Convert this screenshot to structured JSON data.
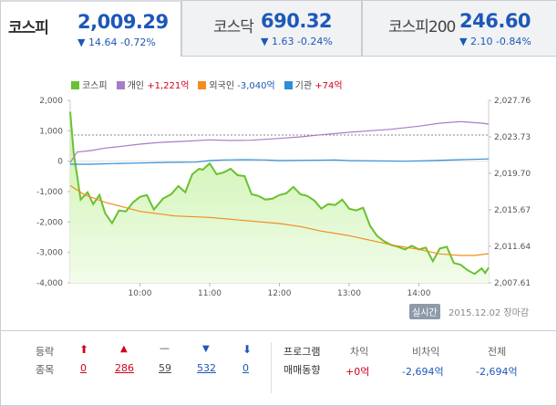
{
  "tabs": [
    {
      "name": "코스피",
      "value": "2,009.29",
      "change": "▼ 14.64 -0.72%",
      "active": true
    },
    {
      "name": "코스닥",
      "value": "690.32",
      "change": "▼ 1.63 -0.24%",
      "active": false
    },
    {
      "name": "코스피200",
      "value": "246.60",
      "change": "▼ 2.10 -0.84%",
      "active": false
    }
  ],
  "legend": [
    {
      "label": "코스피",
      "color": "#6ac12f",
      "delta": ""
    },
    {
      "label": "개인",
      "color": "#a77cc5",
      "delta": "+1,221억"
    },
    {
      "label": "외국인",
      "color": "#f28d1f",
      "delta": "-3,040억"
    },
    {
      "label": "기관",
      "color": "#2f8ed8",
      "delta": "+74억"
    }
  ],
  "footer": {
    "realtime_label": "실시간",
    "datetime": "2015.12.02 장마감"
  },
  "breadth": {
    "label_line1": "등락",
    "label_line2": "종목",
    "items": [
      {
        "icon": "upper-limit-icon",
        "glyph": "⬆",
        "color": "#d0021b",
        "value": "0"
      },
      {
        "icon": "up-icon",
        "glyph": "▲",
        "color": "#d0021b",
        "value": "286"
      },
      {
        "icon": "flat-icon",
        "glyph": "—",
        "color": "#444444",
        "value": "59"
      },
      {
        "icon": "down-icon",
        "glyph": "▼",
        "color": "#1d58b8",
        "value": "532"
      },
      {
        "icon": "lower-limit-icon",
        "glyph": "⬇",
        "color": "#1d58b8",
        "value": "0"
      }
    ]
  },
  "program": {
    "label_line1": "프로그램",
    "label_line2": "매매동향",
    "columns": [
      {
        "label": "차익",
        "value": "+0억"
      },
      {
        "label": "비차익",
        "value": "-2,694억"
      },
      {
        "label": "전체",
        "value": "-2,694억"
      }
    ]
  },
  "chart_data": {
    "type": "line",
    "x_ticks": [
      "10:00",
      "11:00",
      "12:00",
      "13:00",
      "14:00"
    ],
    "left_axis": {
      "ticks": [
        "2,000",
        "1,000",
        "0",
        "-1,000",
        "-2,000",
        "-3,000",
        "-4,000"
      ],
      "range": [
        -4000,
        2000
      ]
    },
    "right_axis": {
      "ticks": [
        "2,027.76",
        "2,023.73",
        "2,019.70",
        "2,015.67",
        "2,011.64",
        "2,007.61"
      ],
      "range": [
        2007.61,
        2027.76
      ]
    },
    "reference_line": 2023.93,
    "x_range": [
      9.0,
      15.0
    ],
    "series": [
      {
        "name": "코스피",
        "axis": "right",
        "color": "#6ac12f",
        "fill": true,
        "x": [
          9.0,
          9.05,
          9.15,
          9.25,
          9.33,
          9.42,
          9.5,
          9.6,
          9.7,
          9.8,
          9.9,
          10.0,
          10.1,
          10.2,
          10.33,
          10.45,
          10.55,
          10.65,
          10.75,
          10.85,
          10.9,
          11.0,
          11.1,
          11.2,
          11.3,
          11.4,
          11.5,
          11.6,
          11.7,
          11.8,
          11.9,
          12.0,
          12.1,
          12.2,
          12.3,
          12.4,
          12.5,
          12.6,
          12.7,
          12.8,
          12.9,
          13.0,
          13.1,
          13.2,
          13.3,
          13.4,
          13.5,
          13.6,
          13.7,
          13.8,
          13.9,
          14.0,
          14.1,
          14.2,
          14.3,
          14.4,
          14.5,
          14.6,
          14.7,
          14.8,
          14.9,
          14.95,
          15.0
        ],
        "y": [
          2026.5,
          2022.0,
          2016.8,
          2017.6,
          2016.3,
          2017.3,
          2015.3,
          2014.2,
          2015.6,
          2015.5,
          2016.5,
          2017.1,
          2017.3,
          2015.7,
          2016.9,
          2017.4,
          2018.3,
          2017.6,
          2019.6,
          2020.2,
          2020.1,
          2020.8,
          2019.6,
          2019.8,
          2020.2,
          2019.5,
          2019.4,
          2017.4,
          2017.2,
          2016.8,
          2016.9,
          2017.3,
          2017.5,
          2018.2,
          2017.4,
          2017.2,
          2016.7,
          2015.8,
          2016.3,
          2016.2,
          2016.8,
          2015.8,
          2015.6,
          2015.9,
          2013.9,
          2012.8,
          2012.2,
          2011.8,
          2011.6,
          2011.3,
          2011.7,
          2011.3,
          2011.5,
          2010.0,
          2011.4,
          2011.6,
          2009.8,
          2009.6,
          2009.0,
          2008.6,
          2009.2,
          2008.7,
          2009.29
        ]
      },
      {
        "name": "개인",
        "axis": "left",
        "color": "#a77cc5",
        "fill": false,
        "x": [
          9.0,
          9.1,
          9.3,
          9.5,
          9.7,
          10.0,
          10.3,
          10.6,
          11.0,
          11.3,
          11.6,
          12.0,
          12.3,
          12.6,
          13.0,
          13.3,
          13.6,
          14.0,
          14.3,
          14.6,
          14.9,
          15.0
        ],
        "y": [
          -50,
          300,
          350,
          430,
          480,
          560,
          620,
          650,
          700,
          680,
          690,
          750,
          800,
          870,
          950,
          1000,
          1050,
          1150,
          1250,
          1300,
          1250,
          1221
        ]
      },
      {
        "name": "외국인",
        "axis": "left",
        "color": "#f28d1f",
        "fill": false,
        "x": [
          9.0,
          9.2,
          9.5,
          10.0,
          10.5,
          11.0,
          11.5,
          12.0,
          12.3,
          12.6,
          13.0,
          13.3,
          13.6,
          14.0,
          14.3,
          14.6,
          14.8,
          15.0
        ],
        "y": [
          -800,
          -1100,
          -1350,
          -1650,
          -1800,
          -1850,
          -1950,
          -2050,
          -2150,
          -2300,
          -2450,
          -2600,
          -2750,
          -2900,
          -3050,
          -3100,
          -3100,
          -3040
        ]
      },
      {
        "name": "기관",
        "axis": "left",
        "color": "#2f8ed8",
        "fill": false,
        "x": [
          9.0,
          9.3,
          9.6,
          10.0,
          10.4,
          10.8,
          11.0,
          11.2,
          11.5,
          11.8,
          12.0,
          12.4,
          12.8,
          13.0,
          13.4,
          13.8,
          14.2,
          14.6,
          15.0
        ],
        "y": [
          -100,
          -100,
          -80,
          -60,
          -40,
          -30,
          20,
          40,
          50,
          40,
          20,
          30,
          40,
          20,
          10,
          0,
          20,
          50,
          74
        ]
      }
    ]
  }
}
